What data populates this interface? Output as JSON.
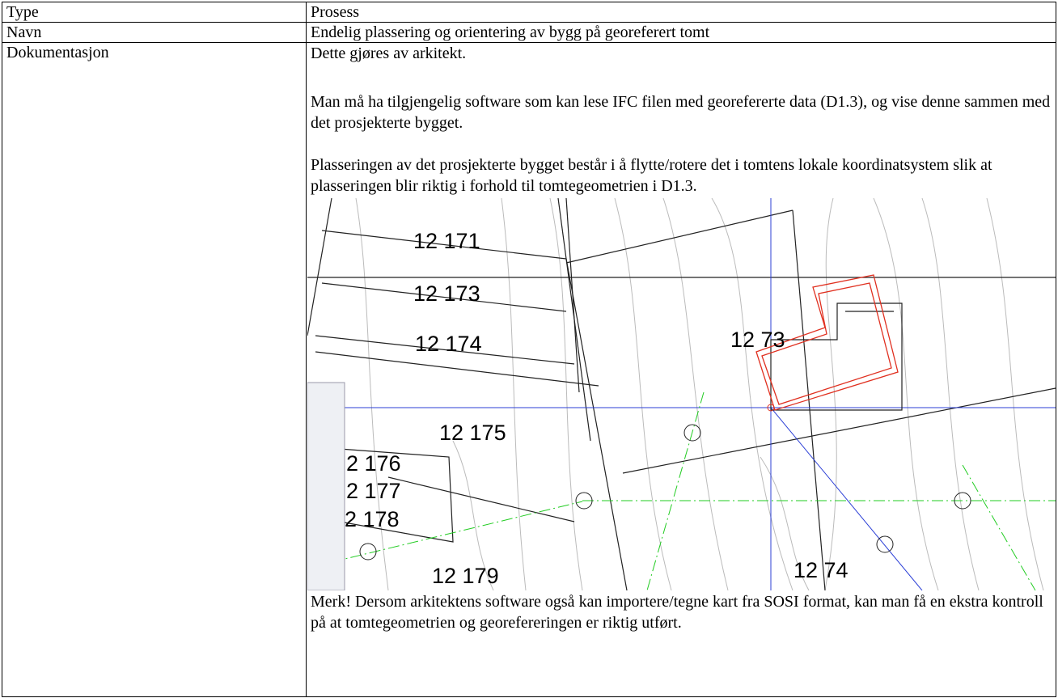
{
  "table": {
    "rows": [
      [
        "Type",
        "Prosess"
      ],
      [
        "Navn",
        "Endelig plassering og orientering av bygg på georeferert tomt"
      ],
      [
        "Dokumentasjon",
        {
          "paragraphs": [
            "Dette gjøres av arkitekt.",
            "Man må ha tilgjengelig software som kan lese IFC filen med georefererte data (D1.3), og vise denne sammen med det prosjekterte bygget.",
            "Plasseringen av det prosjekterte bygget består i å flytte/rotere det i tomtens lokale koordinatsystem slik at plasseringen blir riktig i forhold til tomtegeometrien i D1.3."
          ],
          "map": {
            "labels": [
              "12 171",
              "12 173",
              "12 174",
              "12 73",
              "12 175",
              "2 176",
              "2 177",
              "2 178",
              "12 179",
              "12 74"
            ]
          },
          "note": "Merk!  Dersom arkitektens software også kan importere/tegne kart fra SOSI format, kan man få en ekstra kontroll på at tomtegeometrien og georefereringen er riktig utført."
        }
      ]
    ]
  }
}
